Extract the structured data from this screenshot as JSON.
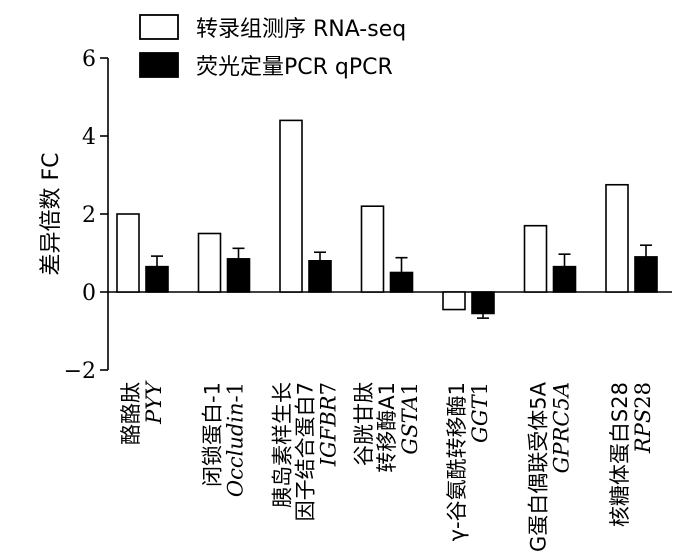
{
  "chart_data": {
    "type": "bar",
    "ylabel": "差异倍数 FC",
    "ylim": [
      -2,
      6
    ],
    "yticks": [
      -2,
      0,
      2,
      4,
      6
    ],
    "legend_position": "top",
    "categories": [
      {
        "line1": "酪酪肽",
        "line2": "",
        "gene": "PYY",
        "gene_suffix": ""
      },
      {
        "line1": "闭锁蛋白-1",
        "line2": "",
        "gene": "Occludin",
        "gene_suffix": "-1"
      },
      {
        "line1": "胰岛素样生长",
        "line2": "因子结合蛋白7",
        "gene": "IGFBR",
        "gene_suffix": "7"
      },
      {
        "line1": "谷胱甘肽",
        "line2": "转移酶A1",
        "gene": "GSTA",
        "gene_suffix": "1"
      },
      {
        "line1": "γ-谷氨酰转移酶1",
        "line2": "",
        "gene": "GGT",
        "gene_suffix": "1"
      },
      {
        "line1": "G蛋白偶联受体5A",
        "line2": "",
        "gene": "GPRC5A",
        "gene_suffix": ""
      },
      {
        "line1": "核糖体蛋白S28",
        "line2": "",
        "gene": "RPS",
        "gene_suffix": "28"
      }
    ],
    "series": [
      {
        "name": "转录组测序 RNA-seq",
        "fill": "#ffffff",
        "values": [
          2.0,
          1.5,
          4.4,
          2.2,
          -0.45,
          1.7,
          2.75
        ]
      },
      {
        "name": "荧光定量PCR qPCR",
        "fill": "#000000",
        "values": [
          0.65,
          0.85,
          0.8,
          0.5,
          -0.55,
          0.65,
          0.9
        ],
        "errors": [
          0.27,
          0.27,
          0.22,
          0.38,
          0.12,
          0.32,
          0.3
        ]
      }
    ]
  }
}
